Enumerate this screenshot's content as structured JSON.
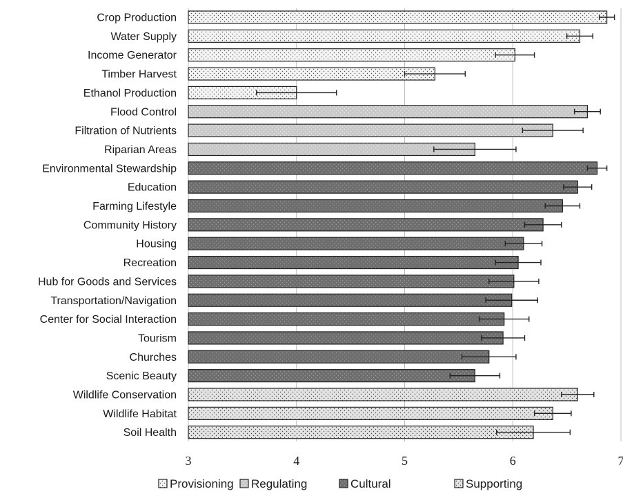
{
  "chart_data": {
    "type": "bar",
    "orientation": "horizontal",
    "title": "",
    "xlabel": "",
    "ylabel": "",
    "xlim": [
      3,
      7
    ],
    "x_ticks": [
      "3",
      "4",
      "5",
      "6",
      "7"
    ],
    "grid": "vertical",
    "legend_position": "bottom",
    "categories": [
      "Crop Production",
      "Water Supply",
      "Income Generator",
      "Timber Harvest",
      "Ethanol Production",
      "Flood Control",
      "Filtration of Nutrients",
      "Riparian Areas",
      "Environmental Stewardship",
      "Education",
      "Farming Lifestyle",
      "Community History",
      "Housing",
      "Recreation",
      "Hub for Goods and Services",
      "Transportation/Navigation",
      "Center for Social Interaction",
      "Tourism",
      "Churches",
      "Scenic Beauty",
      "Wildlife Conservation",
      "Wildlife Habitat",
      "Soil Health"
    ],
    "values": [
      6.87,
      6.62,
      6.02,
      5.28,
      4.0,
      6.69,
      6.37,
      5.65,
      6.78,
      6.6,
      6.46,
      6.28,
      6.1,
      6.05,
      6.01,
      5.99,
      5.92,
      5.91,
      5.78,
      5.65,
      6.6,
      6.37,
      6.19
    ],
    "error": [
      0.07,
      0.12,
      0.18,
      0.28,
      0.37,
      0.12,
      0.28,
      0.38,
      0.09,
      0.13,
      0.16,
      0.17,
      0.17,
      0.21,
      0.23,
      0.24,
      0.23,
      0.2,
      0.25,
      0.23,
      0.15,
      0.17,
      0.34
    ],
    "groups": [
      0,
      0,
      0,
      0,
      0,
      1,
      1,
      1,
      2,
      2,
      2,
      2,
      2,
      2,
      2,
      2,
      2,
      2,
      2,
      2,
      3,
      3,
      3
    ],
    "legend": [
      {
        "name": "Provisioning",
        "fill": "#f4f4f4",
        "dot": "#555555"
      },
      {
        "name": "Regulating",
        "fill": "#c9c9c9",
        "dot": "#eeeeee"
      },
      {
        "name": "Cultural",
        "fill": "#6e6e6e",
        "dot": "#9a9a9a"
      },
      {
        "name": "Supporting",
        "fill": "#e3e3e3",
        "dot": "#444444"
      }
    ],
    "colors": {
      "grid": "#bdbdbd",
      "bar_stroke": "#222222",
      "error": "#222222"
    }
  }
}
